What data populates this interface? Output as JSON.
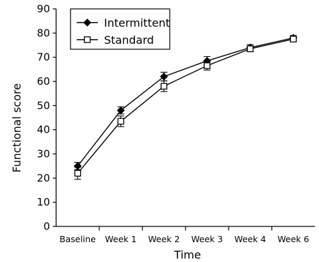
{
  "chart_data": {
    "type": "line",
    "xlabel": "Time",
    "ylabel": "Functional score",
    "categories": [
      "Baseline",
      "Week 1",
      "Week 2",
      "Week 3",
      "Week 4",
      "Week 6"
    ],
    "ylim": [
      0,
      90
    ],
    "yticks": [
      0,
      10,
      20,
      30,
      40,
      50,
      60,
      70,
      80,
      90
    ],
    "legend_position": "top-left",
    "series": [
      {
        "name": "Intermittent",
        "marker": "filled-diamond",
        "values": [
          25,
          48,
          62,
          68.5,
          74,
          78
        ],
        "error": [
          1.5,
          1.5,
          1.8,
          1.8,
          1.2,
          1
        ]
      },
      {
        "name": "Standard",
        "marker": "open-square",
        "values": [
          22,
          43.5,
          58,
          66.5,
          73.5,
          77.5
        ],
        "error": [
          2.5,
          2.2,
          2.2,
          1.8,
          1.2,
          1
        ]
      }
    ]
  }
}
